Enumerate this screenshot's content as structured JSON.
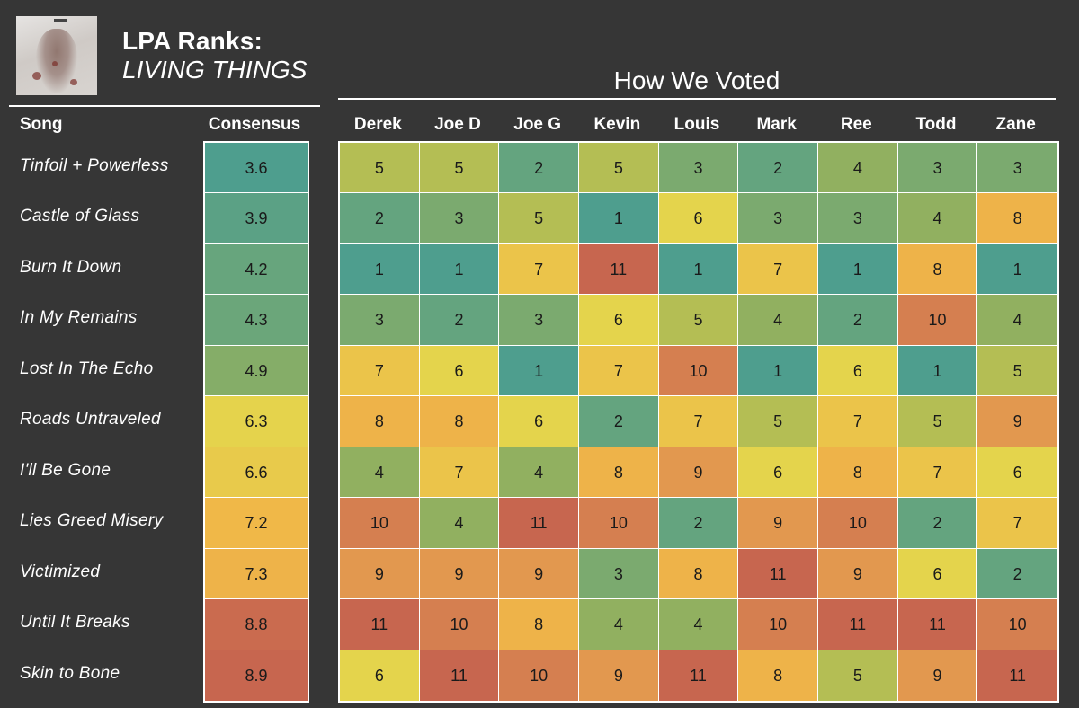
{
  "header": {
    "title": "LPA Ranks:",
    "album": "LIVING THINGS",
    "votes_title": "How We Voted",
    "song_col": "Song",
    "consensus_col": "Consensus"
  },
  "chart_data": {
    "type": "heatmap",
    "color_scale": {
      "low": "#4e9e8e",
      "mid": "#e4d44c",
      "high": "#c7664f"
    },
    "voters": [
      "Derek",
      "Joe D",
      "Joe G",
      "Kevin",
      "Louis",
      "Mark",
      "Ree",
      "Todd",
      "Zane"
    ],
    "songs": [
      {
        "name": "Tinfoil + Powerless",
        "consensus": "3.6",
        "ranks": [
          5,
          5,
          2,
          5,
          3,
          2,
          4,
          3,
          3
        ]
      },
      {
        "name": "Castle of Glass",
        "consensus": "3.9",
        "ranks": [
          2,
          3,
          5,
          1,
          6,
          3,
          3,
          4,
          8
        ]
      },
      {
        "name": "Burn It Down",
        "consensus": "4.2",
        "ranks": [
          1,
          1,
          7,
          11,
          1,
          7,
          1,
          8,
          1
        ]
      },
      {
        "name": "In My Remains",
        "consensus": "4.3",
        "ranks": [
          3,
          2,
          3,
          6,
          5,
          4,
          2,
          10,
          4
        ]
      },
      {
        "name": "Lost In The Echo",
        "consensus": "4.9",
        "ranks": [
          7,
          6,
          1,
          7,
          10,
          1,
          6,
          1,
          5
        ]
      },
      {
        "name": "Roads Untraveled",
        "consensus": "6.3",
        "ranks": [
          8,
          8,
          6,
          2,
          7,
          5,
          7,
          5,
          9
        ]
      },
      {
        "name": "I'll Be Gone",
        "consensus": "6.6",
        "ranks": [
          4,
          7,
          4,
          8,
          9,
          6,
          8,
          7,
          6
        ]
      },
      {
        "name": "Lies Greed Misery",
        "consensus": "7.2",
        "ranks": [
          10,
          4,
          11,
          10,
          2,
          9,
          10,
          2,
          7
        ]
      },
      {
        "name": "Victimized",
        "consensus": "7.3",
        "ranks": [
          9,
          9,
          9,
          3,
          8,
          11,
          9,
          6,
          2
        ]
      },
      {
        "name": "Until It Breaks",
        "consensus": "8.8",
        "ranks": [
          11,
          10,
          8,
          4,
          4,
          10,
          11,
          11,
          10
        ]
      },
      {
        "name": "Skin to Bone",
        "consensus": "8.9",
        "ranks": [
          6,
          11,
          10,
          9,
          11,
          8,
          5,
          9,
          11
        ]
      }
    ]
  }
}
